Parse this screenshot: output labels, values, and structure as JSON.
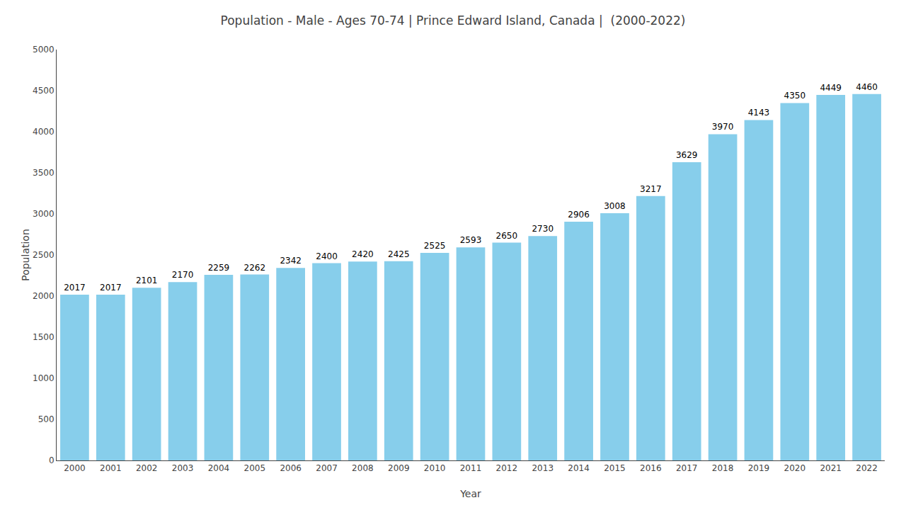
{
  "chart_data": {
    "type": "bar",
    "title": "Population - Male - Ages 70-74 | Prince Edward Island, Canada |  (2000-2022)",
    "x_label": "Year",
    "y_label": "Population",
    "categories": [
      "2000",
      "2001",
      "2002",
      "2003",
      "2004",
      "2005",
      "2006",
      "2007",
      "2008",
      "2009",
      "2010",
      "2011",
      "2012",
      "2013",
      "2014",
      "2015",
      "2016",
      "2017",
      "2018",
      "2019",
      "2020",
      "2021",
      "2022"
    ],
    "values": [
      2017,
      2017,
      2101,
      2170,
      2259,
      2262,
      2342,
      2400,
      2420,
      2425,
      2525,
      2593,
      2650,
      2730,
      2906,
      3008,
      3217,
      3629,
      3970,
      4143,
      4350,
      4449,
      4460
    ],
    "color": "#87ceeb",
    "ylim": [
      0,
      5000
    ],
    "yticks": [
      0,
      500,
      1000,
      1500,
      2000,
      2500,
      3000,
      3500,
      4000,
      4500,
      5000
    ],
    "grid": false,
    "data_labels": true
  }
}
